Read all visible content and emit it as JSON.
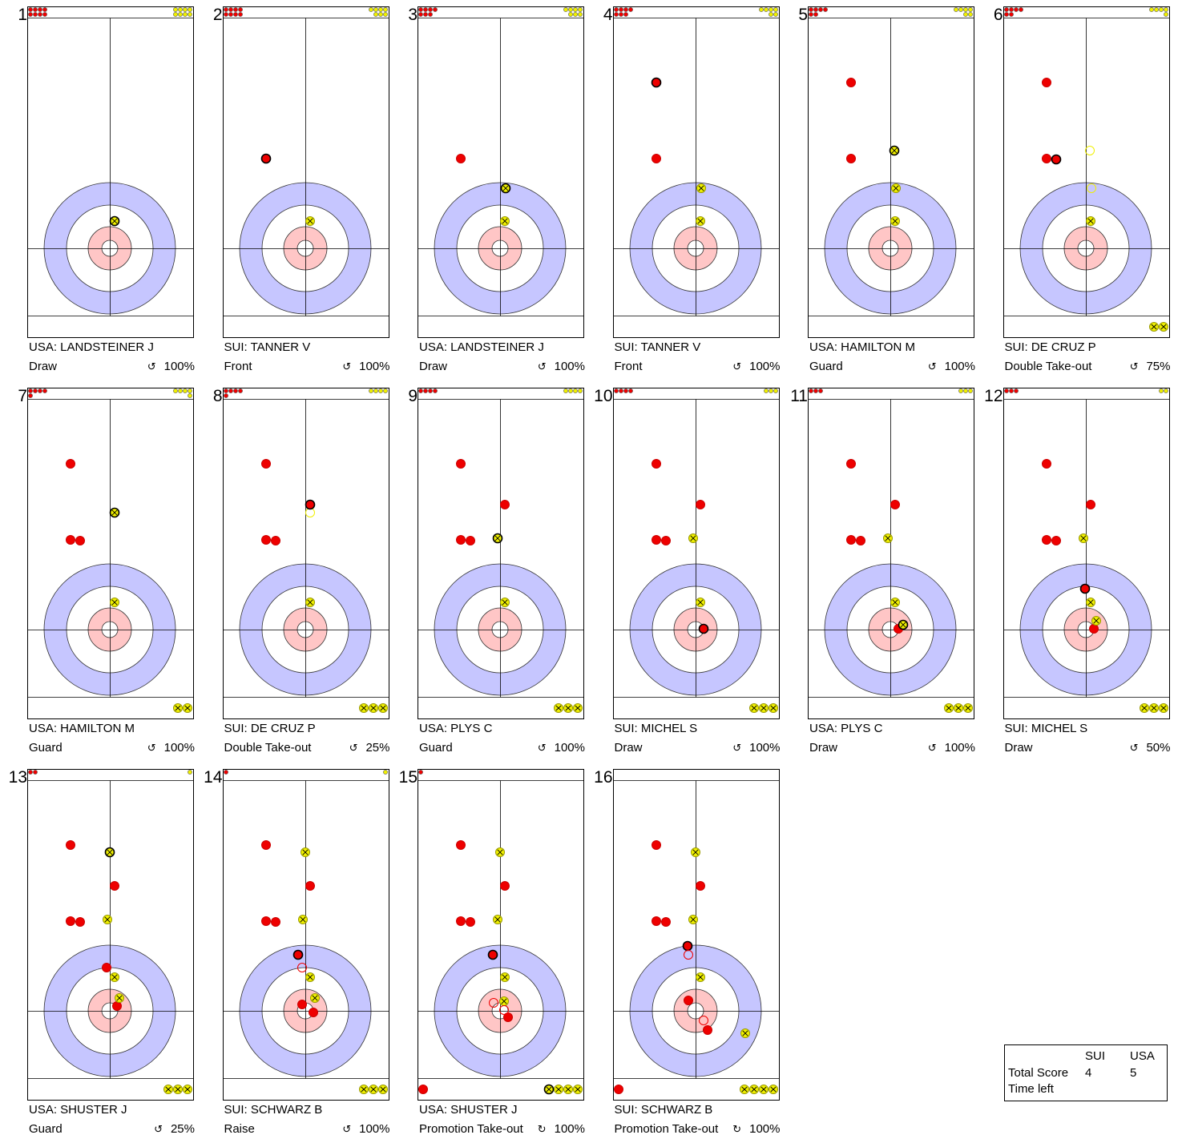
{
  "colors": {
    "red_team": "#ee0000",
    "yellow_team": "#f0f000",
    "ring_outer": "#c6c6ff",
    "ring_inner": "#ffc6c6"
  },
  "teams": {
    "red": "SUI",
    "yellow": "USA"
  },
  "shots": [
    {
      "number": "1",
      "player": "USA: LANDSTEINER J",
      "type": "Draw",
      "rotation_icon": "counter-clockwise",
      "score": "100%",
      "red_remaining": 8,
      "yellow_remaining": 8,
      "red_out": 0,
      "yellow_out": 0,
      "outlined": []
    },
    {
      "number": "2",
      "player": "SUI: TANNER V",
      "type": "Front",
      "rotation_icon": "counter-clockwise",
      "score": "100%",
      "red_remaining": 8,
      "yellow_remaining": 7,
      "red_out": 0,
      "yellow_out": 0,
      "outlined": []
    },
    {
      "number": "3",
      "player": "USA: LANDSTEINER J",
      "type": "Draw",
      "rotation_icon": "counter-clockwise",
      "score": "100%",
      "red_remaining": 7,
      "yellow_remaining": 7,
      "red_out": 0,
      "yellow_out": 0,
      "outlined": []
    },
    {
      "number": "4",
      "player": "SUI: TANNER V",
      "type": "Front",
      "rotation_icon": "counter-clockwise",
      "score": "100%",
      "red_remaining": 7,
      "yellow_remaining": 6,
      "red_out": 0,
      "yellow_out": 0,
      "outlined": []
    },
    {
      "number": "5",
      "player": "USA: HAMILTON M",
      "type": "Guard",
      "rotation_icon": "counter-clockwise",
      "score": "100%",
      "red_remaining": 6,
      "yellow_remaining": 6,
      "red_out": 0,
      "yellow_out": 0,
      "outlined": []
    },
    {
      "number": "6",
      "player": "SUI: DE CRUZ P",
      "type": "Double Take-out",
      "rotation_icon": "counter-clockwise",
      "score": "75%",
      "red_remaining": 6,
      "yellow_remaining": 5,
      "red_out": 0,
      "yellow_out": 2,
      "outlined": []
    },
    {
      "number": "7",
      "player": "USA: HAMILTON M",
      "type": "Guard",
      "rotation_icon": "counter-clockwise",
      "score": "100%",
      "red_remaining": 5,
      "yellow_remaining": 5,
      "red_out": 0,
      "yellow_out": 2,
      "outlined": []
    },
    {
      "number": "8",
      "player": "SUI: DE CRUZ P",
      "type": "Double Take-out",
      "rotation_icon": "counter-clockwise",
      "score": "25%",
      "red_remaining": 5,
      "yellow_remaining": 4,
      "red_out": 0,
      "yellow_out": 3,
      "outlined": []
    },
    {
      "number": "9",
      "player": "USA: PLYS C",
      "type": "Guard",
      "rotation_icon": "counter-clockwise",
      "score": "100%",
      "red_remaining": 4,
      "yellow_remaining": 4,
      "red_out": 0,
      "yellow_out": 3,
      "outlined": []
    },
    {
      "number": "10",
      "player": "SUI: MICHEL S",
      "type": "Draw",
      "rotation_icon": "counter-clockwise",
      "score": "100%",
      "red_remaining": 4,
      "yellow_remaining": 3,
      "red_out": 0,
      "yellow_out": 3,
      "outlined": []
    },
    {
      "number": "11",
      "player": "USA: PLYS C",
      "type": "Draw",
      "rotation_icon": "counter-clockwise",
      "score": "100%",
      "red_remaining": 3,
      "yellow_remaining": 3,
      "red_out": 0,
      "yellow_out": 3,
      "outlined": []
    },
    {
      "number": "12",
      "player": "SUI: MICHEL S",
      "type": "Draw",
      "rotation_icon": "counter-clockwise",
      "score": "50%",
      "red_remaining": 3,
      "yellow_remaining": 2,
      "red_out": 0,
      "yellow_out": 3,
      "outlined": []
    },
    {
      "number": "13",
      "player": "USA: SHUSTER J",
      "type": "Guard",
      "rotation_icon": "counter-clockwise",
      "score": "25%",
      "red_remaining": 2,
      "yellow_remaining": 1,
      "red_out": 0,
      "yellow_out": 3,
      "outlined": []
    },
    {
      "number": "14",
      "player": "SUI: SCHWARZ B",
      "type": "Raise",
      "rotation_icon": "counter-clockwise",
      "score": "100%",
      "red_remaining": 1,
      "yellow_remaining": 1,
      "red_out": 0,
      "yellow_out": 3,
      "outlined": []
    },
    {
      "number": "15",
      "player": "USA: SHUSTER J",
      "type": "Promotion Take-out",
      "rotation_icon": "clockwise",
      "score": "100%",
      "red_remaining": 1,
      "yellow_remaining": 0,
      "red_out": 1,
      "yellow_out": 4,
      "outlined": []
    },
    {
      "number": "16",
      "player": "SUI: SCHWARZ B",
      "type": "Promotion Take-out",
      "rotation_icon": "clockwise",
      "score": "100%",
      "red_remaining": 0,
      "yellow_remaining": 0,
      "red_out": 1,
      "yellow_out": 4,
      "outlined": []
    }
  ],
  "scoreboard": {
    "team_a": "SUI",
    "team_b": "USA",
    "total_score_label": "Total Score",
    "time_left_label": "Time left",
    "score_a": "4",
    "score_b": "5"
  }
}
